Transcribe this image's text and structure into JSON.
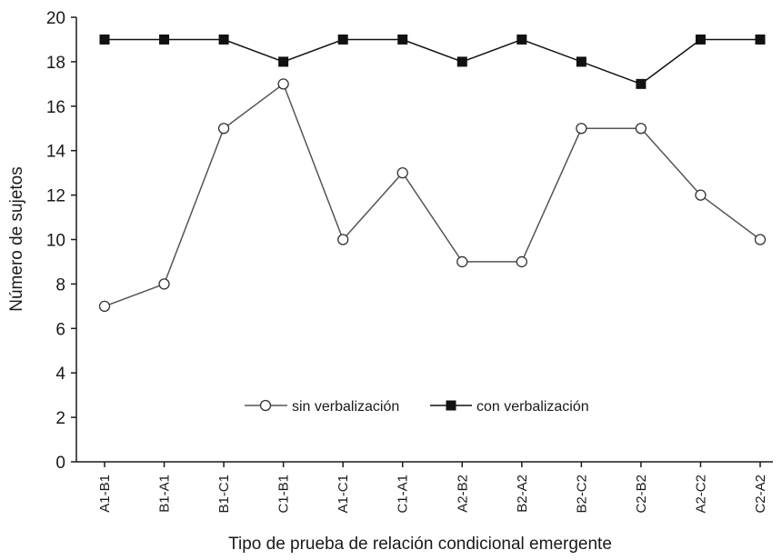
{
  "chart_data": {
    "type": "line",
    "xlabel": "Tipo de prueba de relación condicional emergente",
    "ylabel": "Número de sujetos",
    "ylim": [
      0,
      20
    ],
    "ytick_step": 2,
    "grid": false,
    "legend_position": "bottom-center",
    "categories": [
      "A1-B1",
      "B1-A1",
      "B1-C1",
      "C1-B1",
      "A1-C1",
      "C1-A1",
      "A2-B2",
      "B2-A2",
      "B2-C2",
      "C2-B2",
      "A2-C2",
      "C2-A2"
    ],
    "series": [
      {
        "name": "sin verbalización",
        "marker": "open-circle",
        "line_color": "#555555",
        "values": [
          7,
          8,
          15,
          17,
          10,
          13,
          9,
          9,
          15,
          15,
          12,
          10
        ]
      },
      {
        "name": "con verbalización",
        "marker": "filled-square",
        "line_color": "#111111",
        "values": [
          19,
          19,
          19,
          18,
          19,
          19,
          18,
          19,
          18,
          17,
          19,
          19
        ]
      }
    ]
  }
}
